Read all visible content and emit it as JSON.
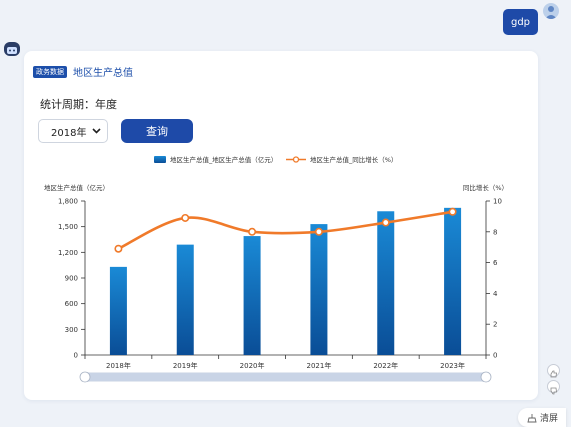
{
  "user_message": "gdp",
  "card": {
    "tag": "政务数据",
    "title": "地区生产总值"
  },
  "form": {
    "period_label": "统计周期：年度",
    "year_selected": "2018年",
    "query_button": "查询"
  },
  "footer": {
    "clear_label": "清屏"
  },
  "colors": {
    "accent": "#1e4aa8",
    "bar_top": "#1a8ad6",
    "bar_bottom": "#0a4d96",
    "line": "#f07a2a"
  },
  "icons": {
    "user_avatar": "user-avatar-icon",
    "bot_avatar": "robot-icon",
    "like": "thumbs-up-icon",
    "dislike": "thumbs-down-icon",
    "clear": "broom-icon",
    "dropdown": "chevron-down-icon"
  },
  "chart_data": {
    "type": "bar",
    "categories": [
      "2018年",
      "2019年",
      "2020年",
      "2021年",
      "2022年",
      "2023年"
    ],
    "series": [
      {
        "name": "地区生产总值_地区生产总值（亿元）",
        "type": "bar",
        "axis": "left",
        "values": [
          1030,
          1290,
          1390,
          1530,
          1680,
          1720
        ]
      },
      {
        "name": "地区生产总值_同比增长（%）",
        "type": "line",
        "axis": "right",
        "values": [
          6.9,
          8.9,
          8.0,
          8.0,
          8.6,
          9.3
        ]
      }
    ],
    "ylabel": "地区生产总值（亿元）",
    "y2label": "同比增长（%）",
    "ylim": [
      0,
      1800
    ],
    "y2lim": [
      0,
      10
    ],
    "yticks": [
      0,
      300,
      600,
      900,
      1200,
      1500,
      1800
    ],
    "yticks_labels": [
      "0",
      "300",
      "600",
      "900",
      "1,200",
      "1,500",
      "1,800"
    ],
    "y2ticks": [
      0,
      2,
      4,
      6,
      8,
      10
    ],
    "legend_position": "top-center",
    "grid": false
  }
}
